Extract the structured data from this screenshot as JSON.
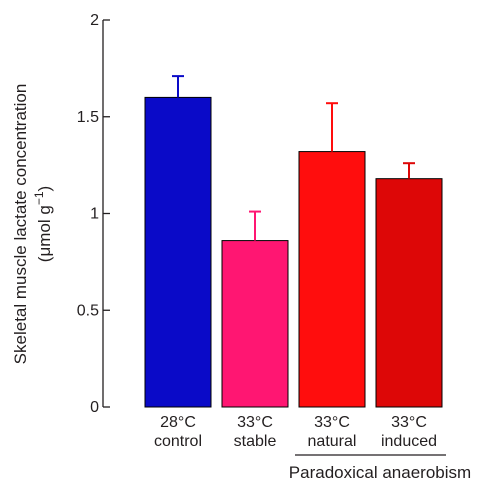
{
  "chart_data": {
    "type": "bar",
    "ylabel_line1": "Skeletal muscle lactate concentration",
    "ylabel_line2_pre": "(μmol g",
    "ylabel_line2_sup": "−1",
    "ylabel_line2_post": ")",
    "ylim": [
      0,
      2
    ],
    "yticks": [
      "0",
      "0.5",
      "1",
      "1.5",
      "2"
    ],
    "ytick_values": [
      0,
      0.5,
      1,
      1.5,
      2
    ],
    "categories": [
      {
        "line1": "28°C",
        "line2": "control"
      },
      {
        "line1": "33°C",
        "line2": "stable"
      },
      {
        "line1": "33°C",
        "line2": "natural"
      },
      {
        "line1": "33°C",
        "line2": "induced"
      }
    ],
    "values": [
      1.6,
      0.86,
      1.32,
      1.18
    ],
    "errors": [
      0.11,
      0.15,
      0.25,
      0.08
    ],
    "colors": [
      "#0a0ac8",
      "#ff1672",
      "#ff0d0d",
      "#dd0707"
    ],
    "group_label": "Paradoxical anaerobism",
    "group_span": [
      2,
      3
    ]
  }
}
